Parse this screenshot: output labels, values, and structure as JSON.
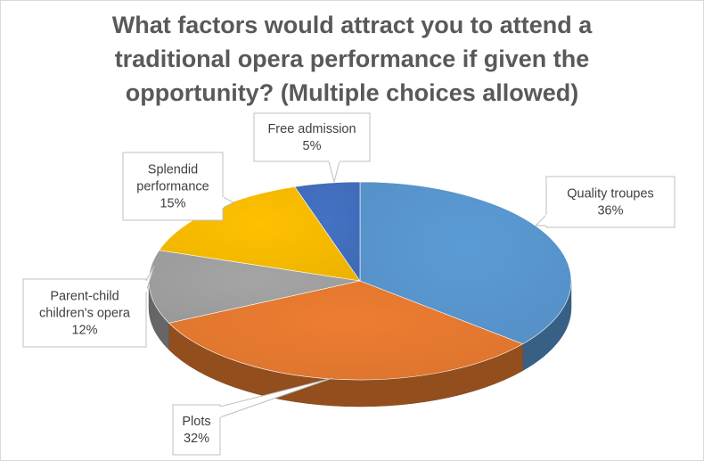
{
  "chart_data": {
    "type": "pie",
    "title_lines": [
      "What factors would attract you to attend a",
      "traditional opera performance if given the",
      "opportunity? (Multiple choices allowed)"
    ],
    "title": "What factors would attract you to attend a traditional opera performance if given the opportunity? (Multiple choices allowed)",
    "style": "3d",
    "legend": "none",
    "slices": [
      {
        "name": "quality-troupes",
        "label_lines": [
          "Quality troupes"
        ],
        "value": 36,
        "value_label": "36%",
        "color": "#5b9bd5"
      },
      {
        "name": "plots",
        "label_lines": [
          "Plots"
        ],
        "value": 32,
        "value_label": "32%",
        "color": "#ed7d31"
      },
      {
        "name": "parent-child",
        "label_lines": [
          "Parent-child",
          "children's opera"
        ],
        "value": 12,
        "value_label": "12%",
        "color": "#a5a5a5"
      },
      {
        "name": "splendid-performance",
        "label_lines": [
          "Splendid",
          "performance"
        ],
        "value": 15,
        "value_label": "15%",
        "color": "#ffc000"
      },
      {
        "name": "free-admission",
        "label_lines": [
          "Free admission"
        ],
        "value": 5,
        "value_label": "5%",
        "color": "#4472c4"
      }
    ]
  }
}
